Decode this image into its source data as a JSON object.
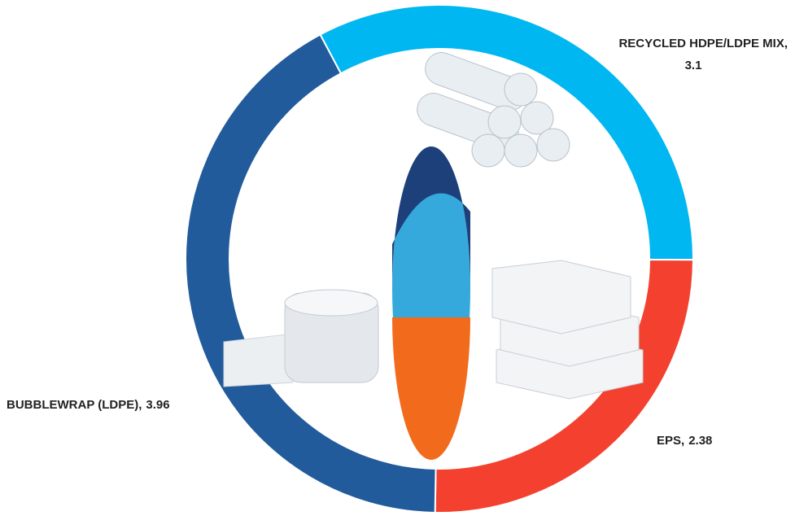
{
  "chart_data": {
    "type": "donut",
    "categories": [
      "RECYCLED HDPE/LDPE MIX,",
      "EPS,",
      "BUBBLEWRAP (LDPE),"
    ],
    "values": [
      3.1,
      2.38,
      3.96
    ],
    "colors": [
      "#00b7f1",
      "#f4412f",
      "#215b9b"
    ]
  }
}
